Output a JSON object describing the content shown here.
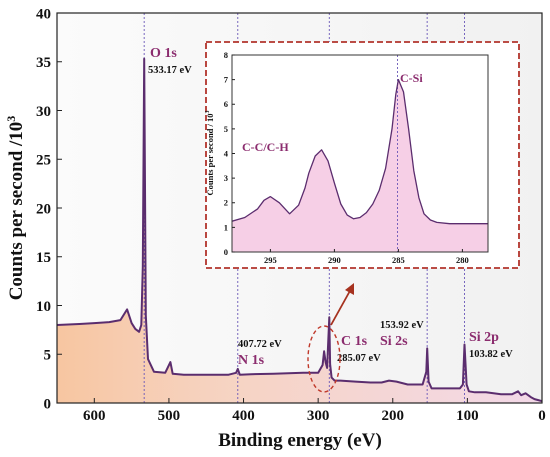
{
  "chart_data": [
    {
      "type": "line",
      "xlabel": "Binding energy (eV)",
      "ylabel": "Counts per second /10³",
      "xlim": [
        650,
        0
      ],
      "ylim": [
        0,
        40
      ],
      "x_ticks": [
        "600",
        "500",
        "400",
        "300",
        "200",
        "100",
        "0"
      ],
      "x_tick_values": [
        600,
        500,
        400,
        300,
        200,
        100,
        0
      ],
      "y_ticks": [
        "0",
        "5",
        "10",
        "15",
        "20",
        "25",
        "30",
        "35",
        "40"
      ],
      "y_tick_values": [
        0,
        5,
        10,
        15,
        20,
        25,
        30,
        35,
        40
      ],
      "x": [
        650,
        620,
        600,
        580,
        565,
        556,
        550,
        545,
        540,
        537,
        535,
        533.2,
        531,
        528,
        520,
        505,
        498,
        495,
        480,
        450,
        420,
        410,
        407.7,
        405,
        390,
        360,
        340,
        320,
        300,
        294,
        292,
        290,
        288,
        287,
        285.1,
        284,
        282,
        278,
        270,
        250,
        230,
        215,
        205,
        195,
        180,
        160,
        155,
        153.9,
        152,
        148,
        140,
        125,
        110,
        106,
        103.8,
        101,
        98,
        90,
        75,
        65,
        55,
        40,
        32,
        28,
        22,
        15,
        10,
        5,
        0
      ],
      "series": [
        {
          "values": [
            8.0,
            8.1,
            8.2,
            8.3,
            8.5,
            9.6,
            8.2,
            7.6,
            7.3,
            8.0,
            14.0,
            35.3,
            9.0,
            4.5,
            3.2,
            3.1,
            4.2,
            3.0,
            2.9,
            2.9,
            2.9,
            3.1,
            3.5,
            2.9,
            2.95,
            3.0,
            3.05,
            3.1,
            3.1,
            3.9,
            5.3,
            4.2,
            3.6,
            5.5,
            8.8,
            4.0,
            2.6,
            2.3,
            2.3,
            2.2,
            2.1,
            2.1,
            2.3,
            2.2,
            1.9,
            1.9,
            3.2,
            5.6,
            2.2,
            1.5,
            1.5,
            1.5,
            1.5,
            1.9,
            6.0,
            1.9,
            1.2,
            1.1,
            1.1,
            1.0,
            0.9,
            0.9,
            1.2,
            0.8,
            1.0,
            0.6,
            0.4,
            0.3,
            0.2
          ]
        }
      ],
      "reference_lines_x": [
        533.17,
        407.72,
        285.07,
        153.92,
        103.82
      ]
    },
    {
      "type": "line",
      "ylabel": "Counts per second / 10³",
      "xlim": [
        298,
        278
      ],
      "ylim": [
        0,
        8
      ],
      "x_ticks": [
        "295",
        "290",
        "285",
        "280"
      ],
      "x_tick_values": [
        295,
        290,
        285,
        280
      ],
      "y_ticks": [
        "0",
        "1",
        "2",
        "3",
        "4",
        "5",
        "6",
        "7",
        "8"
      ],
      "y_tick_values": [
        0,
        1,
        2,
        3,
        4,
        5,
        6,
        7,
        8
      ],
      "x": [
        298,
        297,
        296,
        295.5,
        295,
        294.3,
        293.5,
        292.8,
        292.3,
        292,
        291.5,
        291,
        290.5,
        290,
        289.5,
        289,
        288.5,
        288,
        287.5,
        287,
        286.5,
        286,
        285.5,
        285.2,
        285,
        284.6,
        284.2,
        283.8,
        283.4,
        283,
        282.5,
        282,
        281,
        280,
        279,
        278
      ],
      "series": [
        {
          "values": [
            1.25,
            1.4,
            1.75,
            2.1,
            2.25,
            2.0,
            1.55,
            1.9,
            2.6,
            3.2,
            3.9,
            4.15,
            3.7,
            2.8,
            1.95,
            1.5,
            1.35,
            1.4,
            1.6,
            1.95,
            2.5,
            3.4,
            5.0,
            6.4,
            7.0,
            6.5,
            5.0,
            3.3,
            2.2,
            1.55,
            1.3,
            1.2,
            1.15,
            1.15,
            1.15,
            1.15
          ]
        }
      ],
      "reference_lines_x": [
        285.07
      ]
    }
  ],
  "annotations": {
    "o1s": {
      "name": "O 1s",
      "ev": "533.17 eV"
    },
    "n1s": {
      "name": "N 1s",
      "ev": "407.72 eV"
    },
    "c1s": {
      "name": "C 1s",
      "ev": "285.07 eV"
    },
    "si2s": {
      "name": "Si 2s",
      "ev": "153.92 eV"
    },
    "si2p": {
      "name": "Si 2p",
      "ev": "103.82 eV"
    },
    "inset_csi": "C-Si",
    "inset_cc": "C-C/C-H"
  },
  "colors": {
    "line": "#5b2d6e",
    "fill_pink": "#f6cfe6",
    "fill_orange": "#f5c7a4",
    "ref_line": "#6a57b8",
    "inset_border": "#b2342c",
    "label_purple": "#8b2c6e"
  }
}
